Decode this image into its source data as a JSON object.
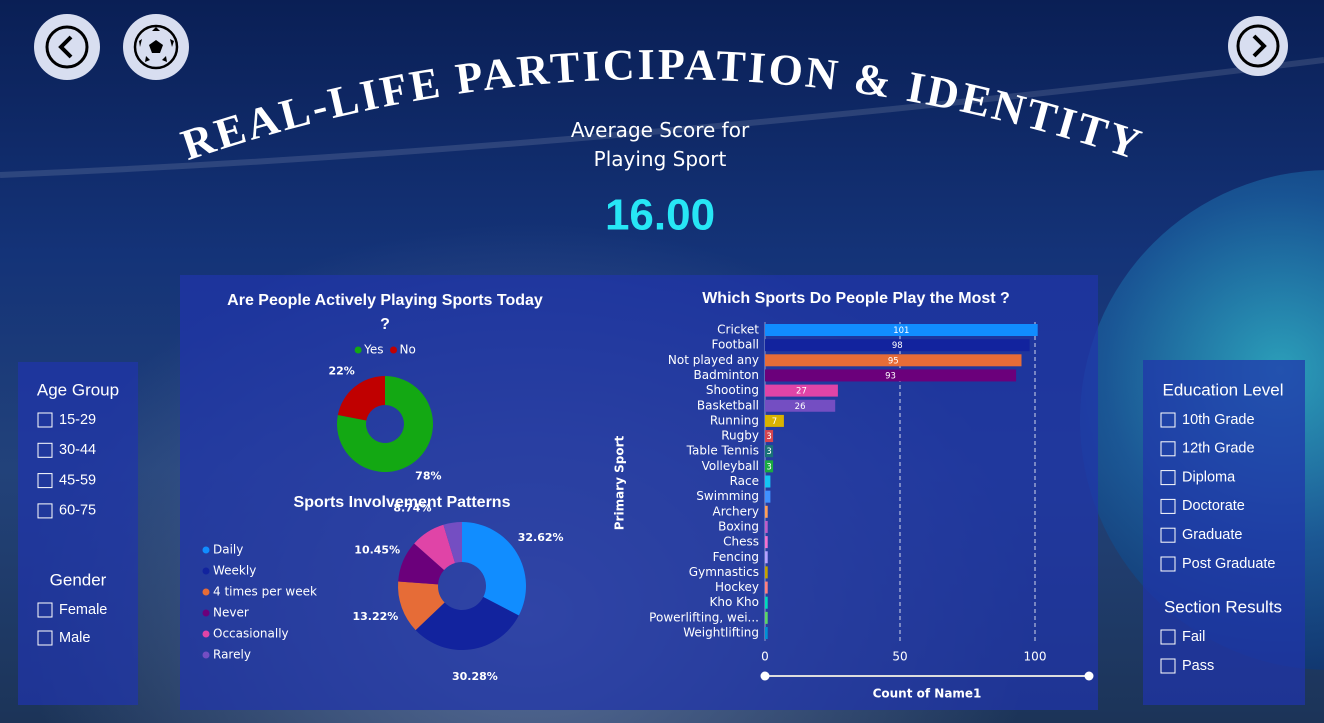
{
  "header": {
    "title": "REAL-LIFE PARTICIPATION & IDENTITY"
  },
  "kpi": {
    "label": "Average Score for Playing Sport",
    "value": "16.00"
  },
  "chart_data": [
    {
      "type": "donut",
      "title": "Are People Actively Playing Sports Today ?",
      "categories": [
        "Yes",
        "No"
      ],
      "values": [
        78,
        22
      ],
      "value_labels": [
        "78%",
        "22%"
      ],
      "colors": [
        "#13a813",
        "#c00000"
      ]
    },
    {
      "type": "donut",
      "title": "Sports Involvement Patterns",
      "categories": [
        "Daily",
        "Weekly",
        "4 times per week",
        "Never",
        "Occasionally",
        "Rarely"
      ],
      "values": [
        32.62,
        30.28,
        13.22,
        10.45,
        8.74,
        4.69
      ],
      "value_labels": [
        "32.62%",
        "30.28%",
        "13.22%",
        "10.45%",
        "8.74%",
        null
      ],
      "colors": [
        "#118dff",
        "#12239e",
        "#e66c37",
        "#6b007b",
        "#e044a7",
        "#744ec2"
      ]
    },
    {
      "type": "hbar",
      "title": "Which Sports Do People Play the Most ?",
      "categories": [
        "Cricket",
        "Football",
        "Not played any",
        "Badminton",
        "Shooting",
        "Basketball",
        "Running",
        "Rugby",
        "Table Tennis",
        "Volleyball",
        "Race",
        "Swimming",
        "Archery",
        "Boxing",
        "Chess",
        "Fencing",
        "Gymnastics",
        "Hockey",
        "Kho Kho",
        "Powerlifting, wei...",
        "Weightlifting"
      ],
      "values": [
        101,
        98,
        95,
        93,
        27,
        26,
        7,
        3,
        3,
        3,
        2,
        2,
        1,
        1,
        1,
        1,
        1,
        1,
        1,
        1,
        1
      ],
      "value_labels": [
        "101",
        "98",
        "95",
        "93",
        "27",
        "26",
        "7",
        "3",
        "3",
        "3",
        null,
        null,
        null,
        null,
        null,
        null,
        null,
        null,
        null,
        null,
        null
      ],
      "colors": [
        "#118dff",
        "#12239e",
        "#e66c37",
        "#6b007b",
        "#e044a7",
        "#744ec2",
        "#d9b300",
        "#d64550",
        "#197278",
        "#1aab40",
        "#15c6f4",
        "#4092ff",
        "#ffa058",
        "#be5dc9",
        "#f472d0",
        "#b5a1ff",
        "#c4a200",
        "#ff8080",
        "#00dbbc",
        "#5bd667",
        "#0091d5"
      ],
      "xlim": [
        0,
        120
      ],
      "xticks": [
        0,
        50,
        100
      ],
      "grid": true,
      "xlabel": "Count of Name1",
      "ylabel": "Primary Sport"
    }
  ],
  "slicers": [
    {
      "title": "Age Group",
      "options": [
        "15-29",
        "30-44",
        "45-59",
        "60-75"
      ]
    },
    {
      "title": "Gender",
      "options": [
        "Female",
        "Male"
      ]
    },
    {
      "title": "Education Level",
      "options": [
        "10th Grade",
        "12th Grade",
        "Diploma",
        "Doctorate",
        "Graduate",
        "Post Graduate"
      ]
    },
    {
      "title": "Section Results",
      "options": [
        "Fail",
        "Pass"
      ]
    }
  ]
}
